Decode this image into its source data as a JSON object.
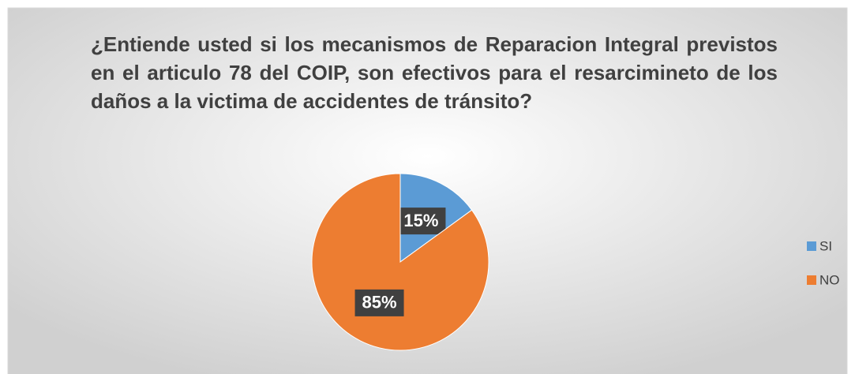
{
  "chart_data": {
    "type": "pie",
    "title": "¿Entiende usted si los mecanismos de Reparacion Integral previstos en el articulo 78 del COIP, son efectivos para el resarcimineto de los daños a la victima de accidentes de tránsito?",
    "categories": [
      "SI",
      "NO"
    ],
    "values": [
      15,
      85
    ],
    "value_labels": [
      "15%",
      "85%"
    ],
    "colors": [
      "#5b9bd5",
      "#ed7d31"
    ],
    "legend": "right"
  }
}
